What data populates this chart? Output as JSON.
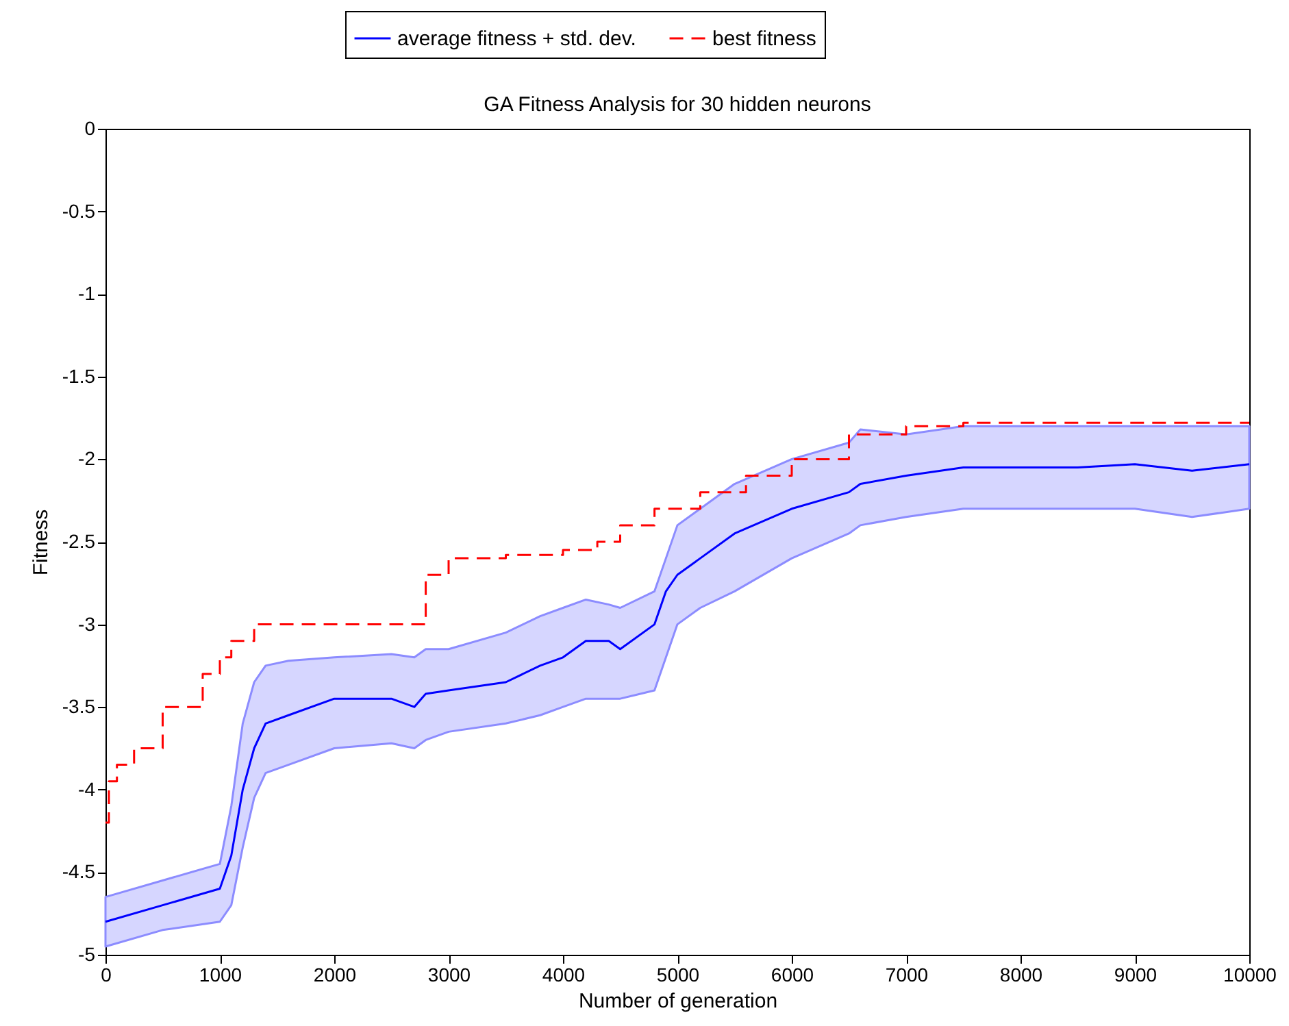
{
  "chart_data": {
    "type": "line",
    "title": "GA Fitness Analysis for 30 hidden neurons",
    "xlabel": "Number of generation",
    "ylabel": "Fitness",
    "xlim": [
      0,
      10000
    ],
    "ylim": [
      -5,
      0
    ],
    "xticks": [
      0,
      1000,
      2000,
      3000,
      4000,
      5000,
      6000,
      7000,
      8000,
      9000,
      10000
    ],
    "yticks": [
      -5,
      -4.5,
      -4,
      -3.5,
      -3,
      -2.5,
      -2,
      -1.5,
      -1,
      -0.5,
      0
    ],
    "grid": false,
    "legend": "top",
    "series": [
      {
        "name": "average fitness + std. dev.",
        "color": "#0000ff",
        "type": "line",
        "line_style": "solid",
        "x": [
          0,
          500,
          1000,
          1100,
          1200,
          1300,
          1400,
          1600,
          2000,
          2500,
          2700,
          2800,
          3000,
          3500,
          3800,
          4000,
          4200,
          4400,
          4500,
          4800,
          4900,
          5000,
          5200,
          5500,
          6000,
          6500,
          6600,
          7000,
          7500,
          8000,
          8500,
          9000,
          9500,
          10000
        ],
        "values": [
          -4.8,
          -4.7,
          -4.6,
          -4.4,
          -4.0,
          -3.75,
          -3.6,
          -3.55,
          -3.45,
          -3.45,
          -3.5,
          -3.42,
          -3.4,
          -3.35,
          -3.25,
          -3.2,
          -3.1,
          -3.1,
          -3.15,
          -3.0,
          -2.8,
          -2.7,
          -2.6,
          -2.45,
          -2.3,
          -2.2,
          -2.15,
          -2.1,
          -2.05,
          -2.05,
          -2.05,
          -2.03,
          -2.07,
          -2.03
        ],
        "upper": [
          -4.65,
          -4.55,
          -4.45,
          -4.1,
          -3.6,
          -3.35,
          -3.25,
          -3.22,
          -3.2,
          -3.18,
          -3.2,
          -3.15,
          -3.15,
          -3.05,
          -2.95,
          -2.9,
          -2.85,
          -2.88,
          -2.9,
          -2.8,
          -2.6,
          -2.4,
          -2.3,
          -2.15,
          -2.0,
          -1.9,
          -1.82,
          -1.85,
          -1.8,
          -1.8,
          -1.8,
          -1.8,
          -1.8,
          -1.8
        ],
        "lower": [
          -4.95,
          -4.85,
          -4.8,
          -4.7,
          -4.35,
          -4.05,
          -3.9,
          -3.85,
          -3.75,
          -3.72,
          -3.75,
          -3.7,
          -3.65,
          -3.6,
          -3.55,
          -3.5,
          -3.45,
          -3.45,
          -3.45,
          -3.4,
          -3.2,
          -3.0,
          -2.9,
          -2.8,
          -2.6,
          -2.45,
          -2.4,
          -2.35,
          -2.3,
          -2.3,
          -2.3,
          -2.3,
          -2.35,
          -2.3
        ]
      },
      {
        "name": "best fitness",
        "color": "#ff0000",
        "type": "step",
        "line_style": "dashed",
        "x": [
          0,
          30,
          100,
          250,
          500,
          800,
          850,
          1000,
          1100,
          1300,
          2750,
          2800,
          3000,
          3500,
          4000,
          4300,
          4500,
          4800,
          5200,
          5600,
          6000,
          6500,
          7000,
          7500,
          10000
        ],
        "values": [
          -4.2,
          -3.95,
          -3.85,
          -3.75,
          -3.5,
          -3.5,
          -3.3,
          -3.2,
          -3.1,
          -3.0,
          -3.0,
          -2.7,
          -2.6,
          -2.58,
          -2.55,
          -2.5,
          -2.4,
          -2.3,
          -2.2,
          -2.1,
          -2.0,
          -1.85,
          -1.8,
          -1.78,
          -1.78
        ]
      }
    ]
  }
}
